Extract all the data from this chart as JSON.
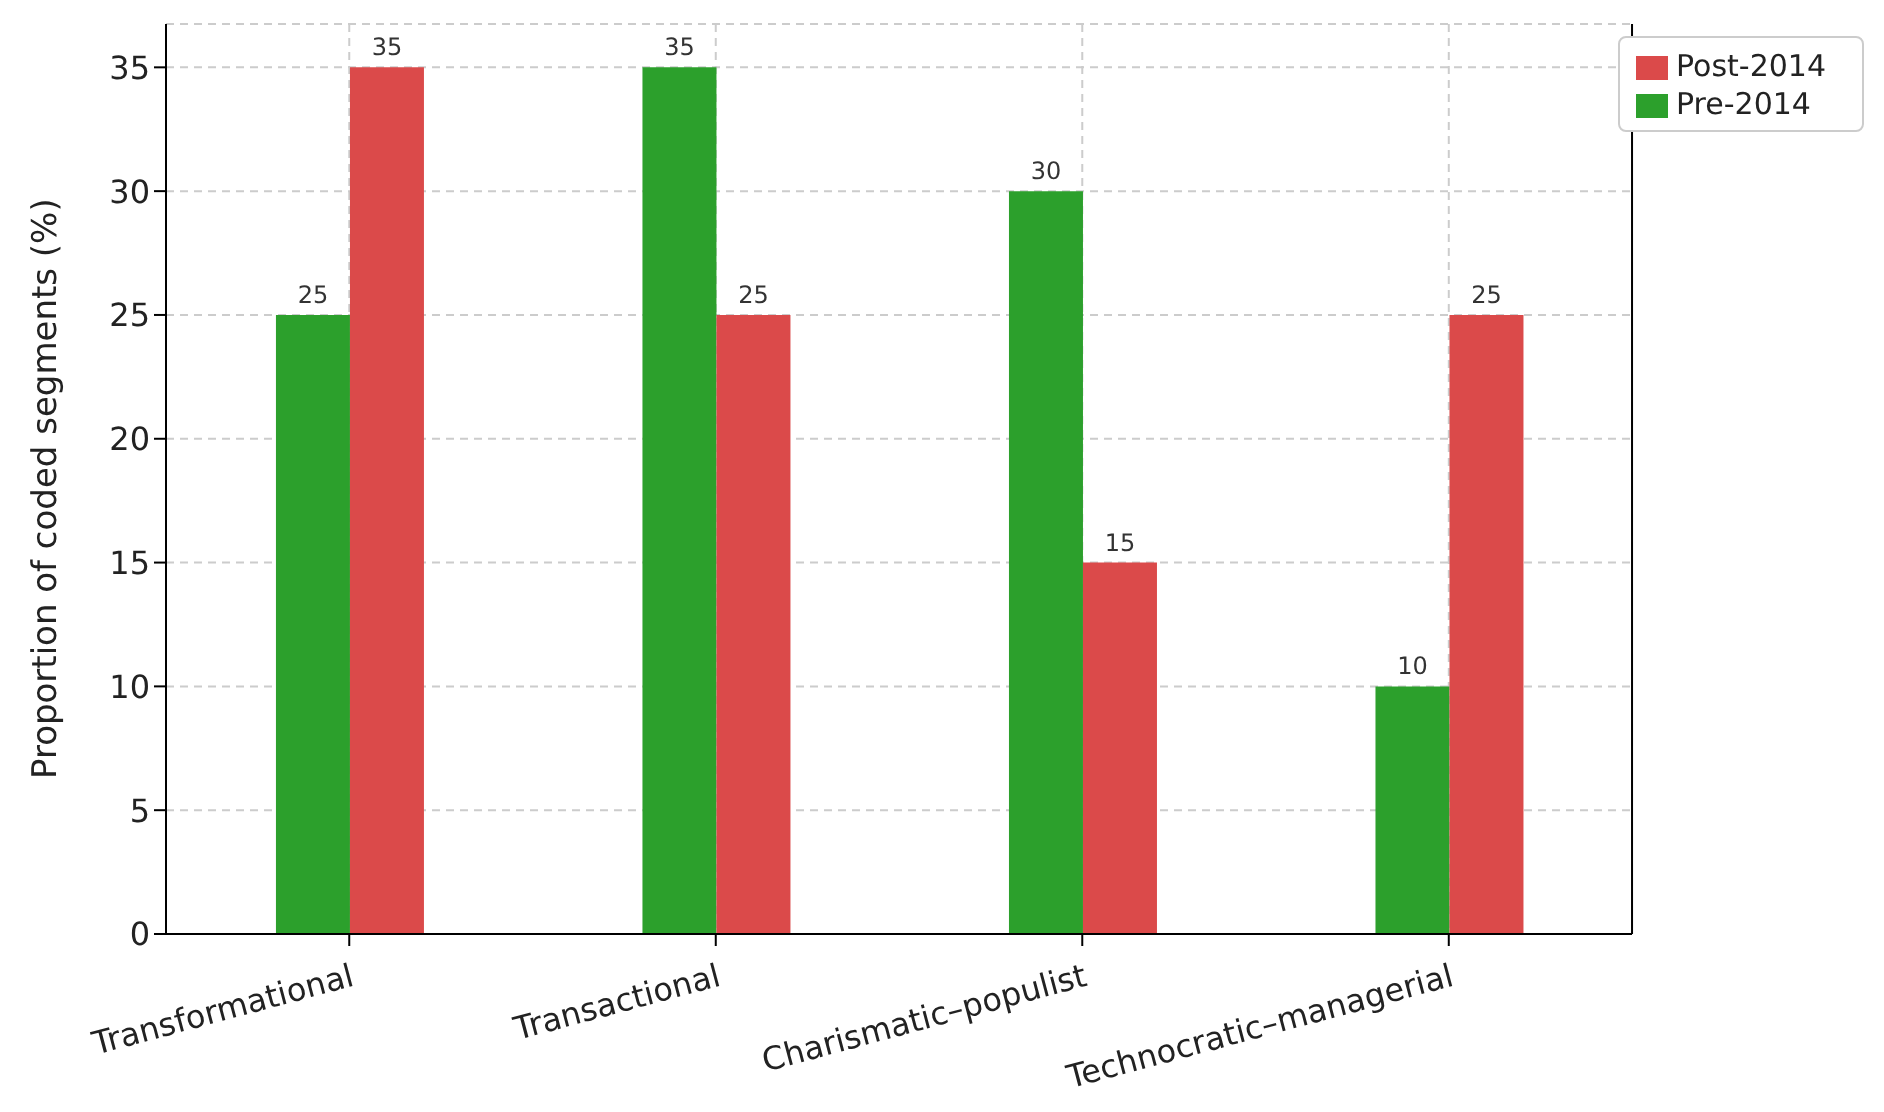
{
  "chart_data": {
    "type": "bar",
    "ylabel": "Proportion of coded segments (%)",
    "categories": [
      "Transformational",
      "Transactional",
      "Charismatic–populist",
      "Technocratic–managerial"
    ],
    "series": [
      {
        "name": "Pre-2014",
        "color": "#2ca02c",
        "values": [
          25,
          35,
          30,
          10
        ]
      },
      {
        "name": "Post-2014",
        "color": "#db4a4a",
        "values": [
          35,
          25,
          15,
          25
        ]
      }
    ],
    "ylim": [
      0,
      36.75
    ],
    "yticks": [
      0,
      5,
      10,
      15,
      20,
      25,
      30,
      35
    ],
    "grid": true,
    "legend": "top right",
    "data_labels": true
  }
}
